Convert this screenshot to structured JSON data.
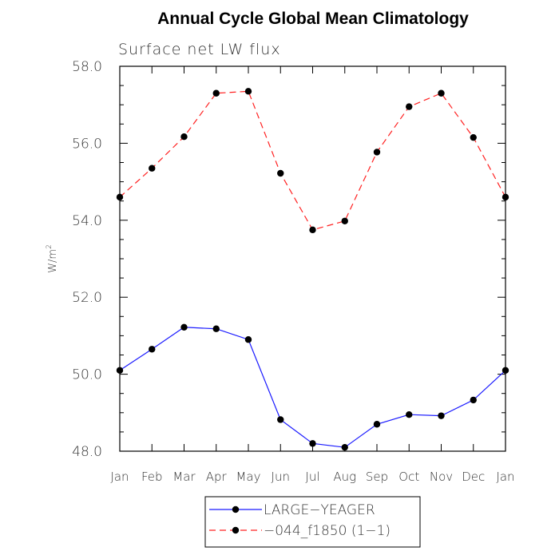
{
  "chart_data": {
    "type": "line",
    "title": "Annual Cycle Global Mean Climatology",
    "subtitle": "Surface net LW flux",
    "ylabel_main": "W/m",
    "ylabel_sup": "2",
    "xlabel": "",
    "categories": [
      "Jan",
      "Feb",
      "Mar",
      "Apr",
      "May",
      "Jun",
      "Jul",
      "Aug",
      "Sep",
      "Oct",
      "Nov",
      "Dec",
      "Jan"
    ],
    "ylim": [
      48.0,
      58.0
    ],
    "yticks": [
      "48.0",
      "50.0",
      "52.0",
      "54.0",
      "56.0",
      "58.0"
    ],
    "series": [
      {
        "name": "LARGE−YEAGER",
        "color": "#1a1aff",
        "dash": "solid",
        "values": [
          50.1,
          50.65,
          51.22,
          51.18,
          50.9,
          48.82,
          48.2,
          48.1,
          48.7,
          48.95,
          48.92,
          49.33,
          50.1
        ]
      },
      {
        "name": "−044_f1850 (1−1)",
        "color": "#ff2020",
        "dash": "dashed",
        "values": [
          54.6,
          55.35,
          56.17,
          57.3,
          57.35,
          55.22,
          53.75,
          53.98,
          55.77,
          56.95,
          57.3,
          56.15,
          54.6
        ]
      }
    ],
    "grid": false,
    "legend_position": "bottom-center"
  }
}
